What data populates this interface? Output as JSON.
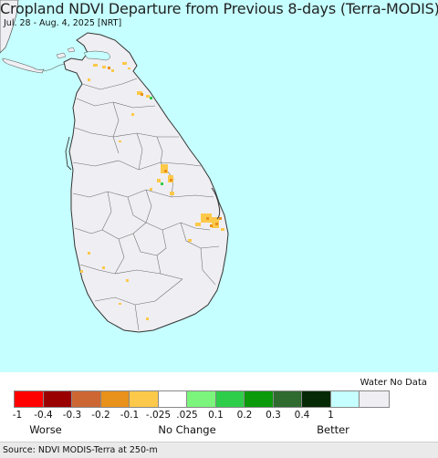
{
  "header": {
    "title": "Cropland NDVI Departure from Previous 8-days (Terra-MODIS)",
    "subtitle": "Jul. 28 - Aug. 4, 2025 [NRT]"
  },
  "map": {
    "region": "Sri Lanka",
    "ocean_color": "#c6ffff",
    "land_color": "#efeef2",
    "boundary_color": "#555555"
  },
  "legend": {
    "water_label": "Water No Data",
    "colors": [
      "#ff0000",
      "#9b0000",
      "#cc6633",
      "#e8911b",
      "#fdc94a",
      "#ffffff",
      "#7bf57b",
      "#2fce4a",
      "#0a9a0a",
      "#2f6a2f",
      "#062a06",
      "#c6ffff",
      "#efeef2"
    ],
    "ticks": [
      "-1",
      "-0.4",
      "-0.3",
      "-0.2",
      "-0.1",
      "-.025",
      ".025",
      "0.1",
      "0.2",
      "0.3",
      "0.4",
      "1"
    ],
    "categories": {
      "worse": "Worse",
      "no_change": "No Change",
      "better": "Better"
    }
  },
  "footer": {
    "source": "Source: NDVI MODIS-Terra at 250-m"
  }
}
